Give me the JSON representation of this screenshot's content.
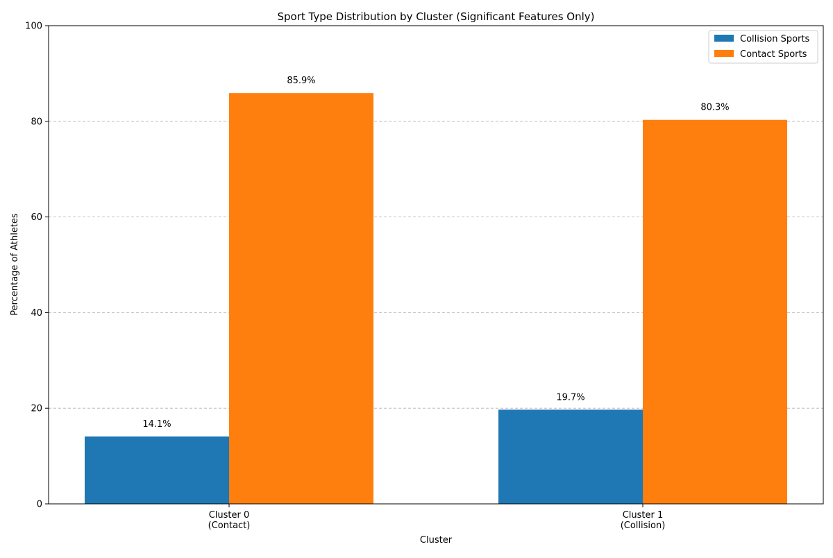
{
  "chart_data": {
    "type": "bar",
    "title": "Sport Type Distribution by Cluster (Significant Features Only)",
    "xlabel": "Cluster",
    "ylabel": "Percentage of Athletes",
    "categories": [
      [
        "Cluster 0",
        "(Contact)"
      ],
      [
        "Cluster 1",
        "(Collision)"
      ]
    ],
    "series": [
      {
        "name": "Collision Sports",
        "color": "#1f77b4",
        "values": [
          14.1,
          19.7
        ],
        "labels": [
          "14.1%",
          "19.7%"
        ]
      },
      {
        "name": "Contact Sports",
        "color": "#ff7f0e",
        "values": [
          85.9,
          80.3
        ],
        "labels": [
          "85.9%",
          "80.3%"
        ]
      }
    ],
    "ylim": [
      0,
      100
    ],
    "yticks": [
      0,
      20,
      40,
      60,
      80,
      100
    ],
    "grid": "y-dashed",
    "legend_position": "top-right"
  }
}
